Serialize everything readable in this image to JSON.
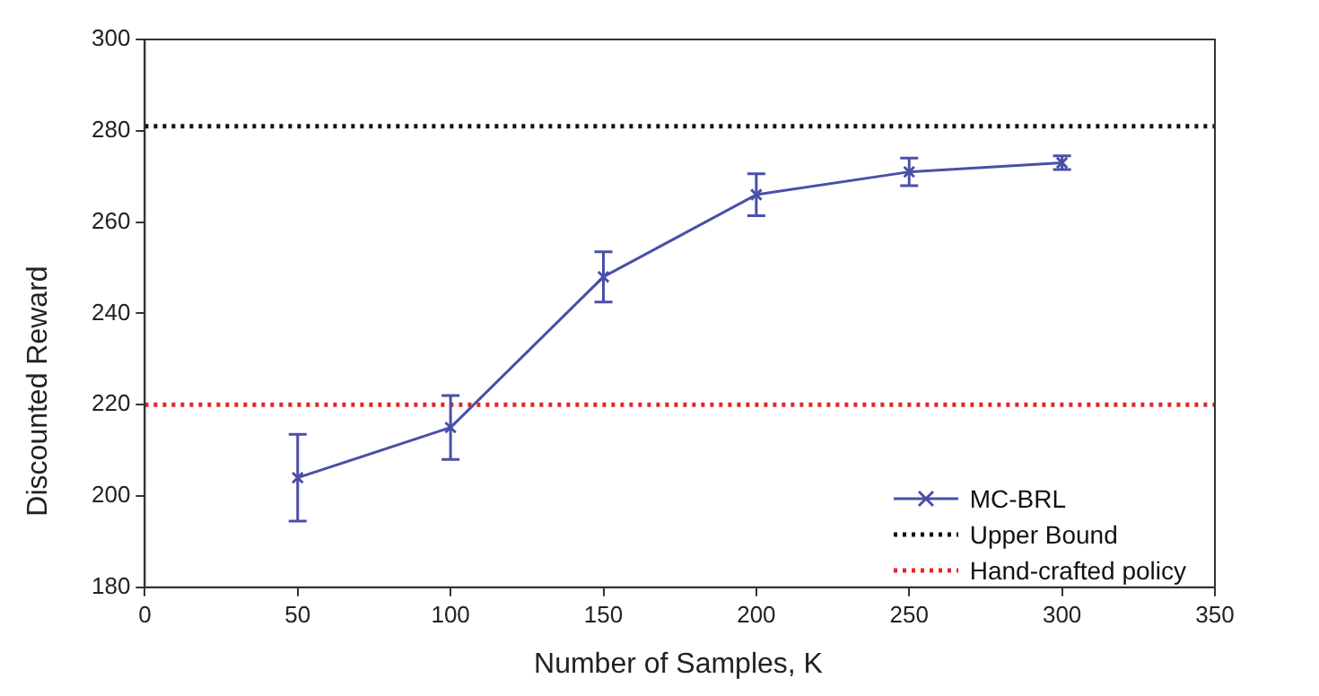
{
  "chart_data": {
    "type": "line",
    "xlabel": "Number of Samples, K",
    "ylabel": "Discounted Reward",
    "x": [
      50,
      100,
      150,
      200,
      250,
      300
    ],
    "series": [
      {
        "name": "MC-BRL",
        "color": "#4a4fa8",
        "values": [
          204,
          215,
          248,
          266,
          271,
          273
        ],
        "errors": [
          9.5,
          7,
          5.5,
          4.6,
          3,
          1.5
        ]
      }
    ],
    "ref_lines": [
      {
        "axis": "y",
        "value": 281,
        "label": "Upper Bound",
        "color": "#111111",
        "line_style": "dotted"
      },
      {
        "axis": "y",
        "value": 220,
        "label": "Hand-crafted policy",
        "color": "#e8242a",
        "line_style": "dotted"
      }
    ],
    "xlim": [
      0,
      350
    ],
    "xticks": [
      0,
      50,
      100,
      150,
      200,
      250,
      300,
      350
    ],
    "ylim": [
      180,
      300
    ],
    "yticks": [
      180,
      200,
      220,
      240,
      260,
      280,
      300
    ],
    "marker": "cross",
    "line_style": "solid",
    "grid": false,
    "legend": "bottom right"
  }
}
